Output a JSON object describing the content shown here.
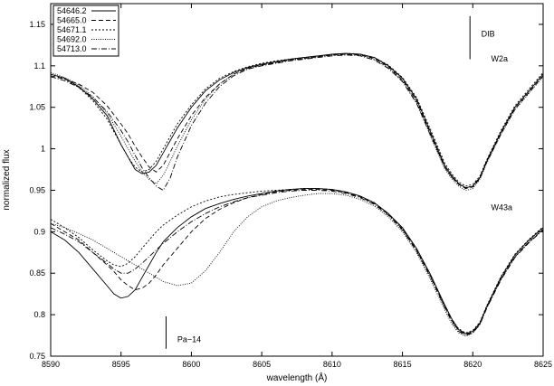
{
  "chart_data": {
    "type": "line",
    "title": "",
    "xlabel": "wavelength (Å)",
    "ylabel": "normalized flux",
    "xlim": [
      8590,
      8625
    ],
    "ylim": [
      0.75,
      1.175
    ],
    "xticks": [
      {
        "v": 8590,
        "label": "8590"
      },
      {
        "v": 8595,
        "label": "8595"
      },
      {
        "v": 8600,
        "label": "8600"
      },
      {
        "v": 8605,
        "label": "8605"
      },
      {
        "v": 8610,
        "label": "8610"
      },
      {
        "v": 8615,
        "label": "8615"
      },
      {
        "v": 8620,
        "label": "8620"
      },
      {
        "v": 8625,
        "label": "8625"
      }
    ],
    "yticks": [
      {
        "v": 0.75,
        "label": "0.75"
      },
      {
        "v": 0.8,
        "label": "0.8"
      },
      {
        "v": 0.85,
        "label": "0.85"
      },
      {
        "v": 0.9,
        "label": "0.9"
      },
      {
        "v": 0.95,
        "label": "0.95"
      },
      {
        "v": 1.0,
        "label": "1"
      },
      {
        "v": 1.05,
        "label": "1.05"
      },
      {
        "v": 1.1,
        "label": "1.1"
      },
      {
        "v": 1.15,
        "label": "1.15"
      }
    ],
    "grid": false,
    "legend_position": "top-left",
    "legend": [
      {
        "label": "54646.2",
        "dash": "solid"
      },
      {
        "label": "54665.0",
        "dash": "dashed"
      },
      {
        "label": "54671.1",
        "dash": "dotted-short"
      },
      {
        "label": "54692.0",
        "dash": "dotted"
      },
      {
        "label": "54713.0",
        "dash": "dash-dot"
      }
    ],
    "annotations": [
      {
        "text": "DIB",
        "x": 8620.6,
        "y": 1.135,
        "line": {
          "x": 8619.8,
          "y1": 1.108,
          "y2": 1.16
        }
      },
      {
        "text": "W2a",
        "x": 8621.3,
        "y": 1.105
      },
      {
        "text": "W43a",
        "x": 8621.3,
        "y": 0.926
      },
      {
        "text": "Pa−14",
        "x": 8599.0,
        "y": 0.767,
        "line": {
          "x": 8598.2,
          "y1": 0.759,
          "y2": 0.798
        }
      }
    ],
    "groups": [
      {
        "label": "W2a",
        "x": [
          8590,
          8591,
          8592,
          8593,
          8594,
          8595,
          8595.5,
          8596,
          8596.5,
          8597,
          8597.5,
          8598,
          8598.5,
          8599,
          8600,
          8601,
          8602,
          8603,
          8604,
          8605,
          8606,
          8607,
          8608,
          8609,
          8610,
          8611,
          8612,
          8613,
          8614,
          8615,
          8616,
          8617,
          8618,
          8618.5,
          8619,
          8619.5,
          8620,
          8620.5,
          8621,
          8622,
          8623,
          8624,
          8625
        ],
        "series": [
          {
            "name": "54646.2",
            "y": [
              1.09,
              1.085,
              1.075,
              1.06,
              1.04,
              1.005,
              0.99,
              0.975,
              0.97,
              0.972,
              0.98,
              0.995,
              1.01,
              1.025,
              1.05,
              1.07,
              1.083,
              1.092,
              1.098,
              1.102,
              1.105,
              1.108,
              1.11,
              1.112,
              1.114,
              1.115,
              1.114,
              1.11,
              1.1,
              1.085,
              1.06,
              1.02,
              0.98,
              0.968,
              0.958,
              0.953,
              0.955,
              0.965,
              0.985,
              1.02,
              1.05,
              1.07,
              1.09
            ]
          },
          {
            "name": "54665.0",
            "y": [
              1.088,
              1.084,
              1.078,
              1.068,
              1.052,
              1.03,
              1.018,
              1.003,
              0.99,
              0.978,
              0.972,
              0.98,
              0.996,
              1.012,
              1.04,
              1.062,
              1.078,
              1.09,
              1.097,
              1.101,
              1.104,
              1.107,
              1.109,
              1.111,
              1.113,
              1.114,
              1.113,
              1.109,
              1.099,
              1.083,
              1.058,
              1.018,
              0.978,
              0.966,
              0.957,
              0.952,
              0.954,
              0.964,
              0.984,
              1.018,
              1.048,
              1.068,
              1.088
            ]
          },
          {
            "name": "54671.1",
            "y": [
              1.09,
              1.084,
              1.074,
              1.058,
              1.036,
              1.005,
              0.99,
              0.978,
              0.972,
              0.975,
              0.985,
              1.0,
              1.015,
              1.03,
              1.053,
              1.072,
              1.085,
              1.093,
              1.099,
              1.103,
              1.106,
              1.108,
              1.11,
              1.112,
              1.114,
              1.115,
              1.114,
              1.11,
              1.101,
              1.086,
              1.062,
              1.023,
              0.983,
              0.97,
              0.96,
              0.955,
              0.957,
              0.967,
              0.987,
              1.022,
              1.052,
              1.072,
              1.092
            ]
          },
          {
            "name": "54692.0",
            "y": [
              1.092,
              1.086,
              1.077,
              1.063,
              1.043,
              1.015,
              1.0,
              0.985,
              0.972,
              0.963,
              0.958,
              0.968,
              0.985,
              1.003,
              1.035,
              1.06,
              1.078,
              1.09,
              1.097,
              1.101,
              1.104,
              1.107,
              1.109,
              1.111,
              1.113,
              1.114,
              1.113,
              1.108,
              1.098,
              1.082,
              1.056,
              1.015,
              0.976,
              0.964,
              0.955,
              0.95,
              0.952,
              0.963,
              0.983,
              1.017,
              1.047,
              1.067,
              1.087
            ]
          },
          {
            "name": "54713.0",
            "y": [
              1.087,
              1.082,
              1.074,
              1.062,
              1.045,
              1.022,
              1.008,
              0.992,
              0.977,
              0.965,
              0.955,
              0.95,
              0.965,
              0.99,
              1.028,
              1.055,
              1.075,
              1.088,
              1.096,
              1.1,
              1.103,
              1.106,
              1.108,
              1.11,
              1.112,
              1.113,
              1.112,
              1.107,
              1.097,
              1.081,
              1.055,
              1.016,
              0.978,
              0.966,
              0.957,
              0.953,
              0.955,
              0.966,
              0.986,
              1.02,
              1.05,
              1.07,
              1.09
            ]
          }
        ]
      },
      {
        "label": "W43a",
        "x": [
          8590,
          8591,
          8592,
          8593,
          8594,
          8594.5,
          8595,
          8595.5,
          8596,
          8596.5,
          8597,
          8597.5,
          8598,
          8599,
          8600,
          8601,
          8602,
          8603,
          8604,
          8605,
          8606,
          8607,
          8608,
          8609,
          8610,
          8611,
          8612,
          8613,
          8614,
          8615,
          8616,
          8617,
          8618,
          8618.5,
          8619,
          8619.5,
          8620,
          8620.5,
          8621,
          8622,
          8623,
          8624,
          8625
        ],
        "series": [
          {
            "name": "54646.2",
            "y": [
              0.9,
              0.89,
              0.875,
              0.855,
              0.835,
              0.825,
              0.82,
              0.822,
              0.83,
              0.845,
              0.86,
              0.875,
              0.888,
              0.905,
              0.918,
              0.928,
              0.934,
              0.939,
              0.943,
              0.946,
              0.949,
              0.951,
              0.952,
              0.952,
              0.951,
              0.948,
              0.943,
              0.935,
              0.922,
              0.905,
              0.88,
              0.848,
              0.812,
              0.795,
              0.782,
              0.777,
              0.78,
              0.79,
              0.81,
              0.845,
              0.872,
              0.89,
              0.905
            ]
          },
          {
            "name": "54665.0",
            "y": [
              0.91,
              0.9,
              0.89,
              0.875,
              0.86,
              0.852,
              0.842,
              0.835,
              0.83,
              0.832,
              0.838,
              0.848,
              0.86,
              0.88,
              0.9,
              0.916,
              0.927,
              0.935,
              0.941,
              0.945,
              0.948,
              0.95,
              0.951,
              0.951,
              0.95,
              0.947,
              0.942,
              0.934,
              0.921,
              0.903,
              0.878,
              0.846,
              0.81,
              0.793,
              0.781,
              0.776,
              0.779,
              0.789,
              0.809,
              0.843,
              0.87,
              0.888,
              0.903
            ]
          },
          {
            "name": "54671.1",
            "y": [
              0.915,
              0.905,
              0.893,
              0.878,
              0.865,
              0.86,
              0.858,
              0.862,
              0.87,
              0.88,
              0.89,
              0.9,
              0.908,
              0.92,
              0.93,
              0.937,
              0.942,
              0.945,
              0.947,
              0.949,
              0.95,
              0.951,
              0.952,
              0.952,
              0.951,
              0.948,
              0.943,
              0.935,
              0.922,
              0.904,
              0.88,
              0.848,
              0.812,
              0.795,
              0.783,
              0.778,
              0.781,
              0.791,
              0.811,
              0.846,
              0.873,
              0.891,
              0.906
            ]
          },
          {
            "name": "54692.0",
            "y": [
              0.91,
              0.905,
              0.898,
              0.89,
              0.88,
              0.875,
              0.87,
              0.865,
              0.86,
              0.855,
              0.85,
              0.845,
              0.84,
              0.835,
              0.838,
              0.853,
              0.875,
              0.9,
              0.918,
              0.93,
              0.937,
              0.941,
              0.944,
              0.946,
              0.946,
              0.944,
              0.939,
              0.931,
              0.918,
              0.9,
              0.875,
              0.842,
              0.806,
              0.789,
              0.778,
              0.774,
              0.778,
              0.789,
              0.809,
              0.843,
              0.87,
              0.888,
              0.903
            ]
          },
          {
            "name": "54713.0",
            "y": [
              0.905,
              0.897,
              0.888,
              0.875,
              0.862,
              0.855,
              0.85,
              0.85,
              0.855,
              0.862,
              0.87,
              0.878,
              0.886,
              0.9,
              0.912,
              0.922,
              0.93,
              0.936,
              0.941,
              0.944,
              0.947,
              0.949,
              0.95,
              0.95,
              0.949,
              0.946,
              0.941,
              0.933,
              0.92,
              0.902,
              0.877,
              0.845,
              0.809,
              0.792,
              0.78,
              0.775,
              0.778,
              0.788,
              0.808,
              0.842,
              0.869,
              0.887,
              0.902
            ]
          }
        ]
      }
    ]
  }
}
